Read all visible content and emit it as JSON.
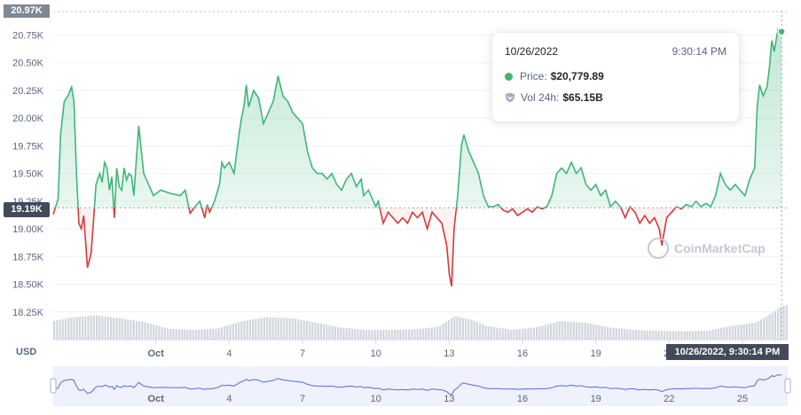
{
  "chart_data": {
    "type": "line",
    "currency_label": "USD",
    "y_ticks": [
      "18.25K",
      "18.50K",
      "18.75K",
      "19.00K",
      "19.25K",
      "19.50K",
      "19.75K",
      "20.00K",
      "20.25K",
      "20.50K",
      "20.75K"
    ],
    "ylim": [
      18.0,
      20.97
    ],
    "x_ticks": [
      {
        "label": "Oct",
        "day": 1,
        "bold": true
      },
      {
        "label": "4",
        "day": 4
      },
      {
        "label": "7",
        "day": 7
      },
      {
        "label": "10",
        "day": 10
      },
      {
        "label": "13",
        "day": 13
      },
      {
        "label": "16",
        "day": 16
      },
      {
        "label": "19",
        "day": 19
      },
      {
        "label": "22",
        "day": 22
      },
      {
        "label": "25",
        "day": 25
      }
    ],
    "xlim_days": [
      -3.2,
      26.85
    ],
    "reference_price": 19.19,
    "reference_label": "19.19K",
    "top_label": "20.97K",
    "crosshair_label": "10/26/2022, 9:30:14 PM",
    "series": [
      {
        "unit": "thousands USD",
        "points": [
          [
            -3.2,
            19.13
          ],
          [
            -3.0,
            19.27
          ],
          [
            -2.9,
            19.85
          ],
          [
            -2.75,
            20.15
          ],
          [
            -2.6,
            20.2
          ],
          [
            -2.45,
            20.28
          ],
          [
            -2.35,
            20.15
          ],
          [
            -2.25,
            19.5
          ],
          [
            -2.15,
            19.05
          ],
          [
            -2.05,
            19.0
          ],
          [
            -1.95,
            19.12
          ],
          [
            -1.8,
            18.65
          ],
          [
            -1.65,
            18.78
          ],
          [
            -1.55,
            19.08
          ],
          [
            -1.45,
            19.4
          ],
          [
            -1.3,
            19.5
          ],
          [
            -1.2,
            19.42
          ],
          [
            -1.1,
            19.6
          ],
          [
            -1.0,
            19.55
          ],
          [
            -0.9,
            19.35
          ],
          [
            -0.8,
            19.47
          ],
          [
            -0.7,
            19.1
          ],
          [
            -0.6,
            19.55
          ],
          [
            -0.5,
            19.38
          ],
          [
            -0.4,
            19.35
          ],
          [
            -0.3,
            19.55
          ],
          [
            -0.2,
            19.44
          ],
          [
            -0.1,
            19.5
          ],
          [
            0.0,
            19.48
          ],
          [
            0.1,
            19.3
          ],
          [
            0.3,
            19.93
          ],
          [
            0.5,
            19.5
          ],
          [
            0.7,
            19.4
          ],
          [
            0.9,
            19.3
          ],
          [
            1.2,
            19.35
          ],
          [
            1.6,
            19.32
          ],
          [
            2.0,
            19.3
          ],
          [
            2.2,
            19.35
          ],
          [
            2.4,
            19.14
          ],
          [
            2.6,
            19.2
          ],
          [
            2.8,
            19.25
          ],
          [
            3.0,
            19.1
          ],
          [
            3.1,
            19.22
          ],
          [
            3.2,
            19.15
          ],
          [
            3.4,
            19.25
          ],
          [
            3.6,
            19.4
          ],
          [
            3.7,
            19.6
          ],
          [
            3.8,
            19.55
          ],
          [
            4.0,
            19.6
          ],
          [
            4.2,
            19.5
          ],
          [
            4.4,
            19.85
          ],
          [
            4.5,
            20.0
          ],
          [
            4.6,
            20.1
          ],
          [
            4.7,
            20.3
          ],
          [
            4.8,
            20.1
          ],
          [
            5.0,
            20.25
          ],
          [
            5.2,
            20.18
          ],
          [
            5.4,
            19.95
          ],
          [
            5.6,
            20.05
          ],
          [
            5.8,
            20.15
          ],
          [
            6.0,
            20.38
          ],
          [
            6.2,
            20.2
          ],
          [
            6.4,
            20.15
          ],
          [
            6.6,
            20.05
          ],
          [
            6.8,
            20.0
          ],
          [
            7.0,
            19.95
          ],
          [
            7.2,
            19.7
          ],
          [
            7.4,
            19.55
          ],
          [
            7.6,
            19.5
          ],
          [
            7.8,
            19.5
          ],
          [
            8.0,
            19.45
          ],
          [
            8.2,
            19.5
          ],
          [
            8.4,
            19.4
          ],
          [
            8.6,
            19.35
          ],
          [
            8.8,
            19.45
          ],
          [
            9.0,
            19.5
          ],
          [
            9.2,
            19.38
          ],
          [
            9.4,
            19.45
          ],
          [
            9.5,
            19.3
          ],
          [
            9.7,
            19.35
          ],
          [
            9.9,
            19.25
          ],
          [
            10.0,
            19.2
          ],
          [
            10.1,
            19.25
          ],
          [
            10.3,
            19.05
          ],
          [
            10.5,
            19.15
          ],
          [
            10.7,
            19.1
          ],
          [
            10.9,
            19.05
          ],
          [
            11.1,
            19.1
          ],
          [
            11.3,
            19.05
          ],
          [
            11.5,
            19.15
          ],
          [
            11.7,
            19.1
          ],
          [
            11.9,
            19.15
          ],
          [
            12.1,
            19.0
          ],
          [
            12.3,
            19.15
          ],
          [
            12.5,
            19.1
          ],
          [
            12.7,
            19.05
          ],
          [
            12.9,
            18.85
          ],
          [
            13.0,
            18.6
          ],
          [
            13.1,
            18.48
          ],
          [
            13.2,
            19.0
          ],
          [
            13.35,
            19.3
          ],
          [
            13.5,
            19.75
          ],
          [
            13.6,
            19.85
          ],
          [
            13.8,
            19.7
          ],
          [
            14.0,
            19.6
          ],
          [
            14.2,
            19.5
          ],
          [
            14.4,
            19.3
          ],
          [
            14.6,
            19.2
          ],
          [
            14.8,
            19.2
          ],
          [
            15.0,
            19.22
          ],
          [
            15.2,
            19.17
          ],
          [
            15.4,
            19.15
          ],
          [
            15.6,
            19.18
          ],
          [
            15.8,
            19.12
          ],
          [
            16.0,
            19.15
          ],
          [
            16.2,
            19.18
          ],
          [
            16.4,
            19.15
          ],
          [
            16.6,
            19.2
          ],
          [
            16.8,
            19.18
          ],
          [
            17.0,
            19.2
          ],
          [
            17.2,
            19.3
          ],
          [
            17.4,
            19.5
          ],
          [
            17.6,
            19.55
          ],
          [
            17.8,
            19.5
          ],
          [
            18.0,
            19.6
          ],
          [
            18.2,
            19.5
          ],
          [
            18.4,
            19.55
          ],
          [
            18.6,
            19.4
          ],
          [
            18.8,
            19.35
          ],
          [
            19.0,
            19.4
          ],
          [
            19.2,
            19.3
          ],
          [
            19.4,
            19.35
          ],
          [
            19.6,
            19.2
          ],
          [
            19.8,
            19.25
          ],
          [
            20.0,
            19.2
          ],
          [
            20.2,
            19.1
          ],
          [
            20.4,
            19.2
          ],
          [
            20.6,
            19.15
          ],
          [
            20.8,
            19.05
          ],
          [
            21.0,
            19.12
          ],
          [
            21.2,
            19.05
          ],
          [
            21.4,
            19.1
          ],
          [
            21.6,
            19.0
          ],
          [
            21.7,
            18.85
          ],
          [
            21.9,
            19.1
          ],
          [
            22.1,
            19.15
          ],
          [
            22.3,
            19.2
          ],
          [
            22.5,
            19.18
          ],
          [
            22.7,
            19.22
          ],
          [
            22.9,
            19.2
          ],
          [
            23.1,
            19.25
          ],
          [
            23.3,
            19.2
          ],
          [
            23.5,
            19.23
          ],
          [
            23.7,
            19.2
          ],
          [
            23.9,
            19.3
          ],
          [
            24.1,
            19.5
          ],
          [
            24.3,
            19.4
          ],
          [
            24.5,
            19.35
          ],
          [
            24.7,
            19.4
          ],
          [
            24.9,
            19.35
          ],
          [
            25.1,
            19.3
          ],
          [
            25.3,
            19.45
          ],
          [
            25.5,
            19.55
          ],
          [
            25.6,
            20.1
          ],
          [
            25.7,
            20.3
          ],
          [
            25.85,
            20.2
          ],
          [
            26.0,
            20.28
          ],
          [
            26.1,
            20.45
          ],
          [
            26.2,
            20.7
          ],
          [
            26.3,
            20.6
          ],
          [
            26.45,
            20.8
          ],
          [
            26.6,
            20.78
          ]
        ],
        "volume": [
          [
            -3.2,
            0.38
          ],
          [
            -2.5,
            0.45
          ],
          [
            -1.5,
            0.5
          ],
          [
            -0.5,
            0.44
          ],
          [
            0.5,
            0.36
          ],
          [
            1.5,
            0.22
          ],
          [
            2.5,
            0.2
          ],
          [
            3.5,
            0.23
          ],
          [
            4.5,
            0.38
          ],
          [
            5.5,
            0.46
          ],
          [
            6.5,
            0.44
          ],
          [
            7.5,
            0.35
          ],
          [
            8.5,
            0.25
          ],
          [
            9.5,
            0.2
          ],
          [
            10.5,
            0.2
          ],
          [
            11.5,
            0.21
          ],
          [
            12.5,
            0.26
          ],
          [
            13.2,
            0.48
          ],
          [
            13.8,
            0.42
          ],
          [
            14.5,
            0.28
          ],
          [
            15.5,
            0.2
          ],
          [
            16.5,
            0.25
          ],
          [
            17.5,
            0.38
          ],
          [
            18.5,
            0.35
          ],
          [
            19.5,
            0.25
          ],
          [
            20.5,
            0.2
          ],
          [
            21.5,
            0.18
          ],
          [
            22.5,
            0.17
          ],
          [
            23.5,
            0.18
          ],
          [
            24.5,
            0.28
          ],
          [
            25.5,
            0.35
          ],
          [
            26.2,
            0.55
          ],
          [
            26.6,
            0.7
          ]
        ]
      }
    ]
  },
  "tooltip": {
    "date": "10/26/2022",
    "time": "9:30:14 PM",
    "price_label": "Price:",
    "price_value": "$20,779.89",
    "volume_label": "Vol 24h:",
    "volume_value": "$65.15B"
  },
  "watermark": "CoinMarketCap",
  "colors": {
    "up": "#3fb67a",
    "down": "#d5393c",
    "up_fill": "#e3f6ec",
    "navigator": "#5b6bd0",
    "navigator_fill": "#e4e8fb",
    "volume": "#d1d5dd"
  }
}
